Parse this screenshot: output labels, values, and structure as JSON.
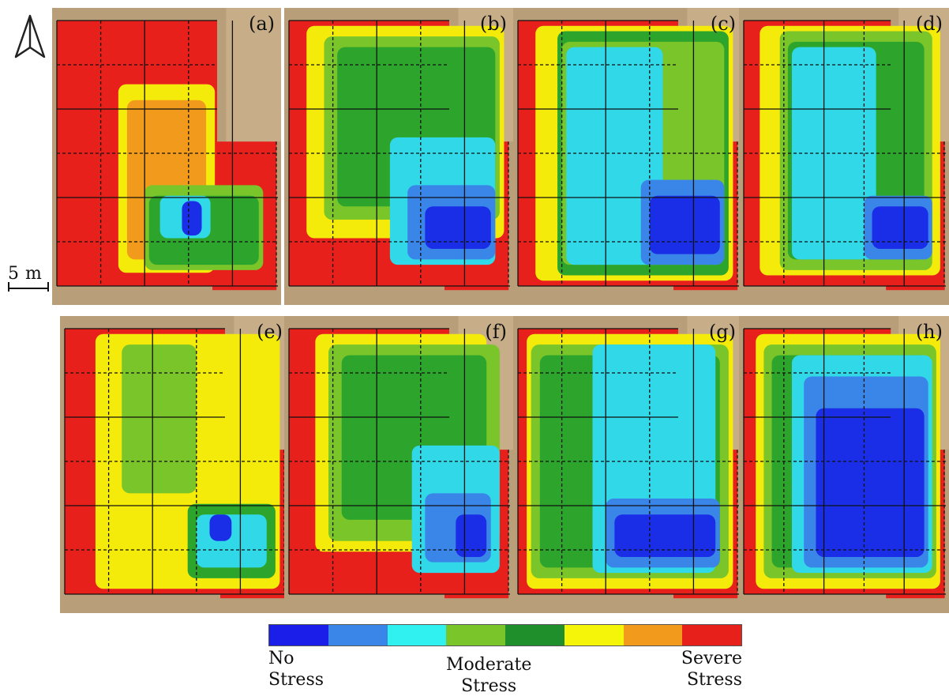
{
  "scale": {
    "label": "5 m"
  },
  "panels": [
    {
      "label": "(a)",
      "base": "#e8201c",
      "zones": [
        {
          "c": "#f5eb0a",
          "r": [
            0.28,
            0.24,
            0.72,
            0.95
          ]
        },
        {
          "c": "#f29a1b",
          "r": [
            0.32,
            0.3,
            0.68,
            0.9
          ]
        },
        {
          "c": "#79c52a",
          "r": [
            0.4,
            0.62,
            0.94,
            0.94
          ]
        },
        {
          "c": "#2da52d",
          "r": [
            0.42,
            0.66,
            0.92,
            0.92
          ]
        },
        {
          "c": "#31d8e8",
          "r": [
            0.47,
            0.66,
            0.7,
            0.82
          ]
        },
        {
          "c": "#1a2ee8",
          "r": [
            0.57,
            0.68,
            0.66,
            0.81
          ]
        }
      ]
    },
    {
      "label": "(b)",
      "base": "#e8201c",
      "zones": [
        {
          "c": "#f5eb0a",
          "r": [
            0.08,
            0.02,
            0.98,
            0.82
          ]
        },
        {
          "c": "#79c52a",
          "r": [
            0.16,
            0.06,
            0.96,
            0.75
          ]
        },
        {
          "c": "#2da52d",
          "r": [
            0.22,
            0.1,
            0.94,
            0.7
          ]
        },
        {
          "c": "#31d8e8",
          "r": [
            0.46,
            0.44,
            0.94,
            0.92
          ]
        },
        {
          "c": "#3a86e8",
          "r": [
            0.54,
            0.62,
            0.94,
            0.9
          ]
        },
        {
          "c": "#1a2ee8",
          "r": [
            0.62,
            0.7,
            0.92,
            0.86
          ]
        }
      ]
    },
    {
      "label": "(c)",
      "base": "#e8201c",
      "zones": [
        {
          "c": "#f5eb0a",
          "r": [
            0.08,
            0.02,
            0.98,
            0.98
          ]
        },
        {
          "c": "#2da52d",
          "r": [
            0.18,
            0.04,
            0.96,
            0.96
          ]
        },
        {
          "c": "#79c52a",
          "r": [
            0.2,
            0.08,
            0.94,
            0.92
          ]
        },
        {
          "c": "#31d8e8",
          "r": [
            0.22,
            0.1,
            0.66,
            0.92
          ]
        },
        {
          "c": "#3a86e8",
          "r": [
            0.56,
            0.6,
            0.94,
            0.92
          ]
        },
        {
          "c": "#1a2ee8",
          "r": [
            0.6,
            0.66,
            0.92,
            0.88
          ]
        }
      ]
    },
    {
      "label": "(d)",
      "base": "#e8201c",
      "zones": [
        {
          "c": "#f5eb0a",
          "r": [
            0.08,
            0.02,
            0.98,
            0.96
          ]
        },
        {
          "c": "#79c52a",
          "r": [
            0.18,
            0.04,
            0.94,
            0.94
          ]
        },
        {
          "c": "#2da52d",
          "r": [
            0.22,
            0.08,
            0.9,
            0.9
          ]
        },
        {
          "c": "#31d8e8",
          "r": [
            0.24,
            0.1,
            0.66,
            0.9
          ]
        },
        {
          "c": "#3a86e8",
          "r": [
            0.6,
            0.66,
            0.94,
            0.9
          ]
        },
        {
          "c": "#1a2ee8",
          "r": [
            0.64,
            0.7,
            0.92,
            0.86
          ]
        }
      ]
    },
    {
      "label": "(e)",
      "base": "#e8201c",
      "zones": [
        {
          "c": "#f5eb0a",
          "r": [
            0.14,
            0.02,
            0.98,
            0.98
          ]
        },
        {
          "c": "#79c52a",
          "r": [
            0.26,
            0.06,
            0.6,
            0.62
          ]
        },
        {
          "c": "#2da52d",
          "r": [
            0.56,
            0.66,
            0.96,
            0.94
          ]
        },
        {
          "c": "#31d8e8",
          "r": [
            0.6,
            0.7,
            0.92,
            0.9
          ]
        },
        {
          "c": "#1a2ee8",
          "r": [
            0.66,
            0.7,
            0.76,
            0.8
          ]
        }
      ]
    },
    {
      "label": "(f)",
      "base": "#e8201c",
      "zones": [
        {
          "c": "#f5eb0a",
          "r": [
            0.12,
            0.02,
            0.9,
            0.84
          ]
        },
        {
          "c": "#79c52a",
          "r": [
            0.18,
            0.06,
            0.96,
            0.8
          ]
        },
        {
          "c": "#2da52d",
          "r": [
            0.24,
            0.1,
            0.9,
            0.72
          ]
        },
        {
          "c": "#31d8e8",
          "r": [
            0.56,
            0.44,
            0.96,
            0.92
          ]
        },
        {
          "c": "#3a86e8",
          "r": [
            0.62,
            0.62,
            0.92,
            0.88
          ]
        },
        {
          "c": "#1a2ee8",
          "r": [
            0.76,
            0.7,
            0.9,
            0.86
          ]
        }
      ]
    },
    {
      "label": "(g)",
      "base": "#e8201c",
      "zones": [
        {
          "c": "#f5eb0a",
          "r": [
            0.04,
            0.02,
            0.98,
            0.98
          ]
        },
        {
          "c": "#79c52a",
          "r": [
            0.06,
            0.06,
            0.96,
            0.94
          ]
        },
        {
          "c": "#2da52d",
          "r": [
            0.1,
            0.1,
            0.92,
            0.9
          ]
        },
        {
          "c": "#31d8e8",
          "r": [
            0.34,
            0.06,
            0.9,
            0.92
          ]
        },
        {
          "c": "#3a86e8",
          "r": [
            0.4,
            0.64,
            0.92,
            0.9
          ]
        },
        {
          "c": "#1a2ee8",
          "r": [
            0.44,
            0.7,
            0.9,
            0.86
          ]
        }
      ]
    },
    {
      "label": "(h)",
      "base": "#e8201c",
      "zones": [
        {
          "c": "#f5eb0a",
          "r": [
            0.06,
            0.02,
            0.98,
            0.98
          ]
        },
        {
          "c": "#79c52a",
          "r": [
            0.1,
            0.06,
            0.96,
            0.94
          ]
        },
        {
          "c": "#2da52d",
          "r": [
            0.14,
            0.1,
            0.92,
            0.9
          ]
        },
        {
          "c": "#31d8e8",
          "r": [
            0.24,
            0.1,
            0.94,
            0.92
          ]
        },
        {
          "c": "#3a86e8",
          "r": [
            0.3,
            0.18,
            0.92,
            0.9
          ]
        },
        {
          "c": "#1a2ee8",
          "r": [
            0.36,
            0.3,
            0.9,
            0.86
          ]
        }
      ]
    }
  ],
  "legend": {
    "colors": [
      "#1a1ee8",
      "#3a86e8",
      "#31f0f0",
      "#79c52a",
      "#1e8f2a",
      "#f5f50a",
      "#f29a1b",
      "#e8201c"
    ],
    "low_line1": "No",
    "low_line2": "Stress",
    "mid_line1": "Moderate",
    "mid_line2": "Stress",
    "high_line1": "Severe",
    "high_line2": "Stress"
  }
}
